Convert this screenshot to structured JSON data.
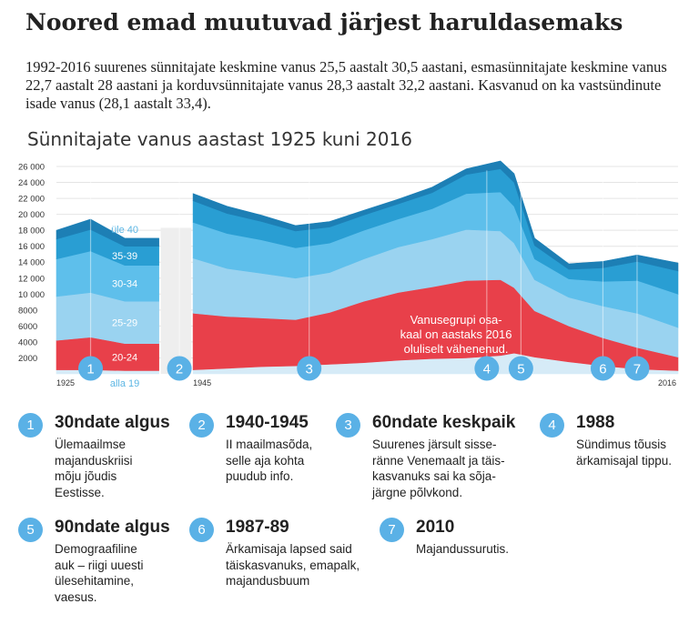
{
  "page": {
    "title": "Noored emad muutuvad järjest haruldasemaks",
    "subtitle": "1992-2016 suurenes sünnitajate keskmine vanus 25,5 aastalt 30,5 aastani, esmasünnitajate keskmine vanus 22,7 aastalt 28 aastani ja korduvsünnitajate vanus 28,3 aastalt 32,2 aastani. Kasvanud on ka vastsündinute isade vanus (28,1 aastalt 33,4).",
    "chart_title": "Sünnitajate vanus aastast 1925 kuni 2016"
  },
  "chart_data": {
    "type": "area",
    "title": "Sünnitajate vanus aastast 1925 kuni 2016",
    "stacked": true,
    "ylim": [
      0,
      26000
    ],
    "yticks": [
      "26 000",
      "24 000",
      "22 000",
      "20 000",
      "18 000",
      "16 000",
      "14 000",
      "12 000",
      "10 000",
      "8000",
      "6000",
      "4000",
      "2000"
    ],
    "ytick_values": [
      26000,
      24000,
      22000,
      20000,
      18000,
      16000,
      14000,
      12000,
      10000,
      8000,
      6000,
      4000,
      2000
    ],
    "xticks": [
      "1925",
      "1945",
      "2016"
    ],
    "gap": [
      1940,
      1945
    ],
    "colors": {
      "alla 19": "#d6ebf7",
      "20-24": "#e8404a",
      "25-29": "#9ad3f0",
      "30-34": "#5ebfeb",
      "35-39": "#299ed3",
      "üle 40": "#1d7fb5"
    },
    "band_labels": [
      "alla 19",
      "20-24",
      "25-29",
      "30-34",
      "35-39",
      "üle 40"
    ],
    "series": [
      {
        "name": "alla 19",
        "segments": [
          {
            "x": [
              1925,
              1930,
              1935,
              1940
            ],
            "y": [
              500,
              500,
              400,
              400
            ]
          },
          {
            "x": [
              1945,
              1950,
              1955,
              1960,
              1965,
              1970,
              1975,
              1980,
              1985,
              1990,
              1992,
              1995,
              2000,
              2005,
              2010,
              2016
            ],
            "y": [
              500,
              700,
              900,
              1000,
              1200,
              1400,
              1700,
              1900,
              2000,
              2300,
              2600,
              2100,
              1500,
              1000,
              600,
              400
            ]
          }
        ]
      },
      {
        "name": "20-24",
        "segments": [
          {
            "x": [
              1925,
              1930,
              1935,
              1940
            ],
            "y": [
              3700,
              4100,
              3400,
              3400
            ]
          },
          {
            "x": [
              1945,
              1950,
              1955,
              1960,
              1965,
              1970,
              1975,
              1980,
              1985,
              1990,
              1992,
              1995,
              2000,
              2005,
              2010,
              2016
            ],
            "y": [
              7100,
              6500,
              6100,
              5800,
              6500,
              7700,
              8500,
              9000,
              9700,
              9500,
              8200,
              5800,
              4500,
              3500,
              2700,
              1700
            ]
          }
        ]
      },
      {
        "name": "25-29",
        "segments": [
          {
            "x": [
              1925,
              1930,
              1935,
              1940
            ],
            "y": [
              5500,
              5600,
              5300,
              5300
            ]
          },
          {
            "x": [
              1945,
              1950,
              1955,
              1960,
              1965,
              1970,
              1975,
              1980,
              1985,
              1990,
              1992,
              1995,
              2000,
              2005,
              2010,
              2016
            ],
            "y": [
              6900,
              6000,
              5600,
              5200,
              5000,
              5300,
              5700,
              6000,
              6400,
              6100,
              5600,
              3900,
              3600,
              4000,
              4300,
              3700
            ]
          }
        ]
      },
      {
        "name": "30-34",
        "segments": [
          {
            "x": [
              1925,
              1930,
              1935,
              1940
            ],
            "y": [
              4700,
              5200,
              4500,
              4500
            ]
          },
          {
            "x": [
              1945,
              1950,
              1955,
              1960,
              1965,
              1970,
              1975,
              1980,
              1985,
              1990,
              1992,
              1995,
              2000,
              2005,
              2010,
              2016
            ],
            "y": [
              4500,
              4400,
              4200,
              3800,
              3700,
              3600,
              3500,
              3800,
              4500,
              4900,
              4600,
              2600,
              2300,
              3100,
              4100,
              4200
            ]
          }
        ]
      },
      {
        "name": "35-39",
        "segments": [
          {
            "x": [
              1925,
              1930,
              1935,
              1940
            ],
            "y": [
              2500,
              2700,
              2400,
              2400
            ]
          },
          {
            "x": [
              1945,
              1950,
              1955,
              1960,
              1965,
              1970,
              1975,
              1980,
              1985,
              1990,
              1992,
              1995,
              2000,
              2005,
              2010,
              2016
            ],
            "y": [
              2700,
              2500,
              2300,
              2100,
              2000,
              1900,
              1900,
              2000,
              2400,
              2900,
              3000,
              1700,
              1200,
              1700,
              2400,
              2900
            ]
          }
        ]
      },
      {
        "name": "üle 40",
        "segments": [
          {
            "x": [
              1925,
              1930,
              1935,
              1940
            ],
            "y": [
              1100,
              1300,
              1000,
              1000
            ]
          },
          {
            "x": [
              1945,
              1950,
              1955,
              1960,
              1965,
              1970,
              1975,
              1980,
              1985,
              1990,
              1992,
              1995,
              2000,
              2005,
              2010,
              2016
            ],
            "y": [
              900,
              900,
              800,
              700,
              700,
              600,
              600,
              700,
              700,
              1000,
              1100,
              900,
              700,
              800,
              800,
              1000
            ]
          }
        ]
      }
    ],
    "annotation": "Vanusegrupi osakaal on aastaks 2016 oluliselt vähenenud.",
    "annotation_lines": [
      "Vanusegrupi osa-",
      "kaal on aastaks 2016",
      "oluliselt vähenenud."
    ],
    "markers": [
      {
        "num": "1",
        "year": 1930
      },
      {
        "num": "2",
        "year": 1943
      },
      {
        "num": "3",
        "year": 1962
      },
      {
        "num": "4",
        "year": 1988
      },
      {
        "num": "5",
        "year": 1993
      },
      {
        "num": "6",
        "year": 2005
      },
      {
        "num": "7",
        "year": 2010
      }
    ]
  },
  "notes": [
    {
      "num": "1",
      "title": "30ndate algus",
      "text": "Ülemaailmse\nmajanduskriisi\nmõju jõudis\nEestisse."
    },
    {
      "num": "2",
      "title": "1940-1945",
      "text": "II maailmasõda,\nselle aja kohta\npuudub info."
    },
    {
      "num": "3",
      "title": "60ndate keskpaik",
      "text": "Suurenes järsult sisse-\nränne Venemaalt ja täis-\nkasvanuks sai ka sõja-\njärgne põlvkond."
    },
    {
      "num": "4",
      "title": "1988",
      "text": "Sündimus tõusis\närkamisajal tippu."
    },
    {
      "num": "5",
      "title": "90ndate algus",
      "text": "Demograafiline\nauk – riigi uuesti\nülesehitamine,\nvaesus."
    },
    {
      "num": "6",
      "title": "1987-89",
      "text": "Ärkamisaja lapsed said\ntäiskasvanuks, emapalk,\nmajandusbuum"
    },
    {
      "num": "7",
      "title": "2010",
      "text": "Majandussurutis."
    }
  ]
}
